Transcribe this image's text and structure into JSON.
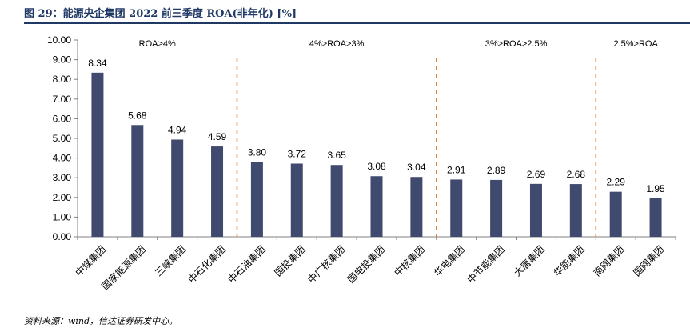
{
  "header": {
    "title": "图 29：能源央企集团 2022 前三季度 ROA(非年化) [%]"
  },
  "footer": {
    "source": "资料来源：wind，信达证券研发中心。"
  },
  "colors": {
    "bar": "#404a6e",
    "divider": "#ed7d31",
    "title": "#1f3864"
  },
  "chart_data": {
    "type": "bar",
    "title": "",
    "xlabel": "",
    "ylabel": "",
    "ylim": [
      0,
      10
    ],
    "yticks": [
      "0.00",
      "1.00",
      "2.00",
      "3.00",
      "4.00",
      "5.00",
      "6.00",
      "7.00",
      "8.00",
      "9.00",
      "10.00"
    ],
    "categories": [
      "中煤集团",
      "国家能源集团",
      "三峡集团",
      "中石化集团",
      "中石油集团",
      "国投集团",
      "中广核集团",
      "国电投集团",
      "中核集团",
      "华电集团",
      "中节能集团",
      "大唐集团",
      "华能集团",
      "南网集团",
      "国网集团"
    ],
    "values": [
      8.34,
      5.68,
      4.94,
      4.59,
      3.8,
      3.72,
      3.65,
      3.08,
      3.04,
      2.91,
      2.89,
      2.69,
      2.68,
      2.29,
      1.95
    ],
    "value_labels": [
      "8.34",
      "5.68",
      "4.94",
      "4.59",
      "3.80",
      "3.72",
      "3.65",
      "3.08",
      "3.04",
      "2.91",
      "2.89",
      "2.69",
      "2.68",
      "2.29",
      "1.95"
    ],
    "groups": [
      {
        "label": "ROA>4%",
        "start": 0,
        "end": 3
      },
      {
        "label": "4%>ROA>3%",
        "start": 4,
        "end": 8
      },
      {
        "label": "3%>ROA>2.5%",
        "start": 9,
        "end": 12
      },
      {
        "label": "2.5%>ROA",
        "start": 13,
        "end": 14
      }
    ],
    "grid": false,
    "legend": "none"
  }
}
